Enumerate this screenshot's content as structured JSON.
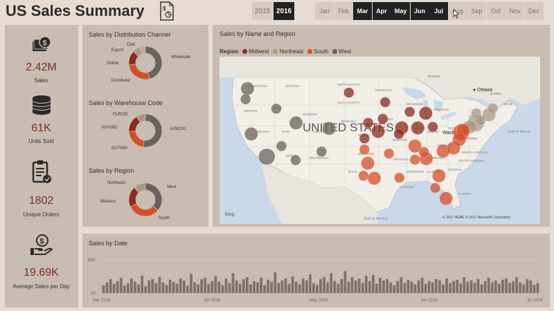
{
  "title": "US Sales Summary",
  "colors": {
    "accent": "#7b2d26",
    "midwest": "#8b2a1e",
    "northeast": "#a89886",
    "south": "#d4502a",
    "west": "#6a625c"
  },
  "years": [
    {
      "label": "2015",
      "selected": false
    },
    {
      "label": "2016",
      "selected": true
    }
  ],
  "months": [
    {
      "label": "Jan",
      "selected": false
    },
    {
      "label": "Feb",
      "selected": false
    },
    {
      "label": "Mar",
      "selected": true
    },
    {
      "label": "Apr",
      "selected": true
    },
    {
      "label": "May",
      "selected": true
    },
    {
      "label": "Jun",
      "selected": true
    },
    {
      "label": "Jul",
      "selected": true
    },
    {
      "label": "Aug",
      "selected": false
    },
    {
      "label": "Sep",
      "selected": false
    },
    {
      "label": "Oct",
      "selected": false
    },
    {
      "label": "Nov",
      "selected": false
    },
    {
      "label": "Dec",
      "selected": false
    }
  ],
  "kpis": [
    {
      "value": "2.42M",
      "label": "Sales",
      "icon": "money-stack-icon"
    },
    {
      "value": "61K",
      "label": "Units Sold",
      "icon": "coin-stack-icon"
    },
    {
      "value": "1802",
      "label": "Unique Orders",
      "icon": "clipboard-check-icon"
    },
    {
      "value": "19.69K",
      "label": "Average Sales per Day",
      "icon": "hand-coin-icon"
    }
  ],
  "channel": {
    "title": "Sales by Distribution Channel",
    "labels": [
      "Club",
      "Export",
      "Online",
      "Distributor",
      "Wholesale"
    ]
  },
  "warehouse": {
    "title": "Sales by Warehouse Code",
    "labels": [
      "FLR025",
      "NXH382",
      "GUT930",
      "AXW291"
    ]
  },
  "region": {
    "title": "Sales by Region",
    "labels": [
      "Northeast",
      "Midwest",
      "South",
      "West"
    ]
  },
  "map": {
    "title": "Sales by Name and Region",
    "legend_title": "Region",
    "legend": [
      "Midwest",
      "Northeast",
      "South",
      "West"
    ],
    "country_label": "UNITED STATES",
    "cities": [
      "Ottawa",
      "Washington"
    ],
    "state_labels": [
      "WASHINGTON",
      "MONTANA",
      "NORTH DAKOTA",
      "MINNESOTA",
      "OREGON",
      "IDAHO",
      "WYOMING",
      "SOUTH DAKOTA",
      "NEBRASKA",
      "NEVADA",
      "UTAH",
      "COLORADO",
      "KANSAS",
      "ARIZONA",
      "NEW MEXICO",
      "OKLAHOMA",
      "TEXAS",
      "IOWA",
      "MISSOURI",
      "ILLINOIS",
      "WISCONSIN",
      "MICHIGAN",
      "OHIO",
      "INDIANA",
      "KENTUCKY",
      "TENNESSEE",
      "ARKANSAS",
      "MISSISSIPPI",
      "ALABAMA",
      "GEORGIA",
      "LOUISIANA",
      "FLORIDA",
      "NEW YORK",
      "PENNSYLVANIA",
      "VIRGINIA",
      "NORTH CAROLINA",
      "SOUTH CAROLINA",
      "MAINE",
      "QUEBEC",
      "ONTARIO"
    ],
    "water_labels": [
      "Gulf of Maine",
      "Gulf of Mexico"
    ],
    "attribution": "© 2017 HERE   © 2017 Microsoft Corporation",
    "provider": "bing"
  },
  "date_chart": {
    "title": "Sales by Date",
    "y_ticks": [
      "50K",
      "0K"
    ],
    "x_ticks": [
      "Mar 2016",
      "Apr 2016",
      "May 2016",
      "Jun 2016",
      "Jul 2016"
    ]
  },
  "chart_data": [
    {
      "type": "pie",
      "title": "Sales by Distribution Channel",
      "categories": [
        "Wholesale",
        "Distributor",
        "Online",
        "Export",
        "Club"
      ],
      "values": [
        46,
        27,
        14,
        7,
        6
      ]
    },
    {
      "type": "pie",
      "title": "Sales by Warehouse Code",
      "categories": [
        "AXW291",
        "GUT930",
        "NXH382",
        "FLR025"
      ],
      "values": [
        52,
        22,
        17,
        9
      ]
    },
    {
      "type": "pie",
      "title": "Sales by Region",
      "categories": [
        "West",
        "South",
        "Midwest",
        "Northeast"
      ],
      "values": [
        36,
        32,
        20,
        12
      ]
    },
    {
      "type": "scatter",
      "title": "Sales by Name and Region",
      "series": [
        {
          "name": "Midwest",
          "points": [
            [
              -100.8,
              46.8,
              2
            ],
            [
              -93.1,
              44.9,
              2
            ],
            [
              -87.9,
              43.0,
              2
            ],
            [
              -89.6,
              39.8,
              3
            ],
            [
              -97.5,
              37.7,
              2
            ],
            [
              -94.6,
              39.1,
              3
            ],
            [
              -90.2,
              38.6,
              2
            ],
            [
              -86.2,
              39.8,
              3
            ],
            [
              -83.0,
              40.0,
              2
            ],
            [
              -84.5,
              42.7,
              3
            ],
            [
              -96.7,
              40.8,
              2
            ],
            [
              -93.6,
              41.6,
              2
            ]
          ]
        },
        {
          "name": "Northeast",
          "points": [
            [
              -71.1,
              42.4,
              3
            ],
            [
              -73.9,
              40.7,
              4
            ],
            [
              -75.2,
              40.0,
              3
            ],
            [
              -72.9,
              41.3,
              2
            ],
            [
              -70.3,
              43.7,
              2
            ],
            [
              -73.8,
              42.7,
              2
            ]
          ]
        },
        {
          "name": "South",
          "points": [
            [
              -97.7,
              30.3,
              2
            ],
            [
              -95.4,
              29.8,
              3
            ],
            [
              -96.8,
              32.8,
              3
            ],
            [
              -90.1,
              29.9,
              2
            ],
            [
              -86.8,
              36.2,
              3
            ],
            [
              -84.4,
              33.7,
              3
            ],
            [
              -80.8,
              35.2,
              3
            ],
            [
              -77.0,
              38.9,
              4
            ],
            [
              -76.6,
              39.3,
              3
            ],
            [
              -81.7,
              30.3,
              3
            ],
            [
              -80.2,
              25.8,
              3
            ],
            [
              -82.5,
              27.9,
              2
            ],
            [
              -86.8,
              33.5,
              2
            ],
            [
              -92.3,
              34.7,
              2
            ],
            [
              -97.5,
              35.5,
              2
            ],
            [
              -84.9,
              35.0,
              2
            ],
            [
              -78.6,
              35.8,
              3
            ],
            [
              -77.4,
              37.5,
              3
            ]
          ]
        },
        {
          "name": "West",
          "points": [
            [
              -122.3,
              47.6,
              3
            ],
            [
              -122.7,
              45.5,
              2
            ],
            [
              -116.2,
              43.6,
              2
            ],
            [
              -121.5,
              38.6,
              3
            ],
            [
              -118.2,
              34.1,
              4
            ],
            [
              -112.0,
              40.8,
              3
            ],
            [
              -105.0,
              39.7,
              3
            ],
            [
              -112.1,
              33.4,
              2
            ],
            [
              -106.6,
              35.1,
              2
            ],
            [
              -115.1,
              36.2,
              2
            ]
          ]
        }
      ]
    },
    {
      "type": "bar",
      "title": "Sales by Date",
      "x_range": [
        "2016-03-01",
        "2016-07-01"
      ],
      "ylim": [
        0,
        50000
      ],
      "values": [
        12000,
        16000,
        21000,
        14000,
        18000,
        23000,
        11000,
        15000,
        22000,
        17000,
        13000,
        26000,
        10000,
        19000,
        21000,
        15000,
        24000,
        16000,
        12000,
        20000,
        17000,
        14000,
        22000,
        19000,
        11000,
        29000,
        16000,
        13000,
        21000,
        23000,
        14000,
        18000,
        26000,
        17000,
        12000,
        22000,
        15000,
        30000,
        19000,
        14000,
        21000,
        24000,
        13000,
        18000,
        16000,
        23000,
        12000,
        20000,
        17000,
        31000,
        15000,
        19000,
        22000,
        14000,
        25000,
        17000,
        13000,
        22000,
        19000,
        28000,
        15000,
        12000,
        21000,
        24000,
        16000,
        30000,
        18000,
        14000,
        21000,
        33000,
        17000,
        24000,
        19000,
        22000,
        15000,
        26000,
        18000,
        27000,
        14000,
        23000,
        19000,
        21000,
        16000,
        12000,
        18000,
        24000,
        15000,
        20000,
        17000,
        13000,
        19000,
        23000,
        14000,
        18000,
        16000,
        21000,
        19000,
        13000,
        22000,
        15000,
        18000,
        20000,
        14000,
        24000,
        17000,
        19000,
        15000,
        21000,
        13000,
        18000,
        23000,
        16000,
        19000,
        14000,
        20000,
        22000,
        15000,
        18000,
        24000,
        16000,
        13000,
        21000,
        19000,
        12000,
        15000
      ]
    }
  ]
}
